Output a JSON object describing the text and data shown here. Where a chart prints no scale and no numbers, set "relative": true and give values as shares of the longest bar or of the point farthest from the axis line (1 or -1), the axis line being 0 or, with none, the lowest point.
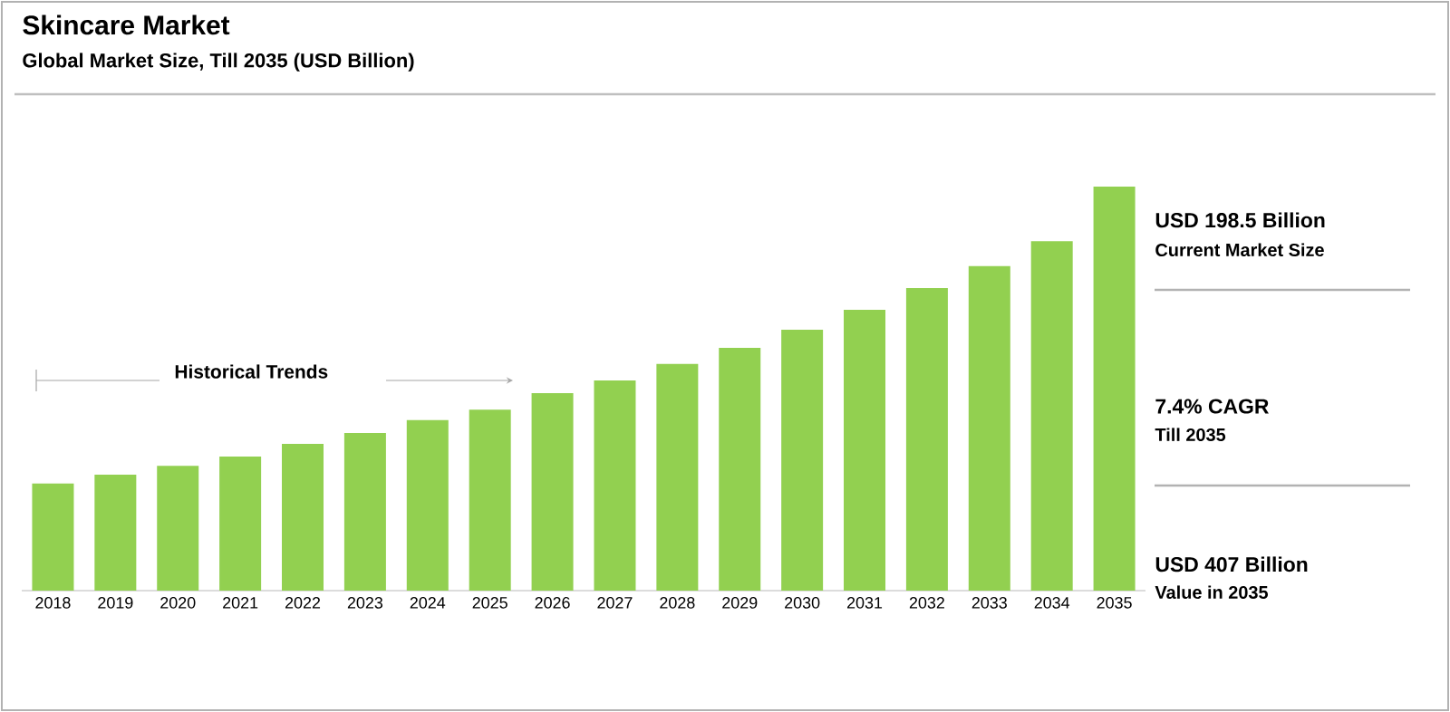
{
  "chart_data": {
    "type": "bar",
    "title": "Skincare Market",
    "subtitle": "Global Market Size, Till 2035 (USD Billion)",
    "categories": [
      "2018",
      "2019",
      "2020",
      "2021",
      "2022",
      "2023",
      "2024",
      "2025",
      "2026",
      "2027",
      "2028",
      "2029",
      "2030",
      "2031",
      "2032",
      "2033",
      "2034",
      "2035"
    ],
    "values": [
      0.265,
      0.287,
      0.309,
      0.332,
      0.363,
      0.39,
      0.422,
      0.448,
      0.489,
      0.52,
      0.561,
      0.601,
      0.646,
      0.695,
      0.749,
      0.803,
      0.865,
      1
    ],
    "color": "#92d050",
    "relative": true,
    "annotations": [
      "Historical Trends",
      "USD 198.5 Billion",
      "Current Market Size",
      "7.4% CAGR",
      "Till 2035",
      "USD 407 Billion",
      "Value in 2035"
    ]
  }
}
